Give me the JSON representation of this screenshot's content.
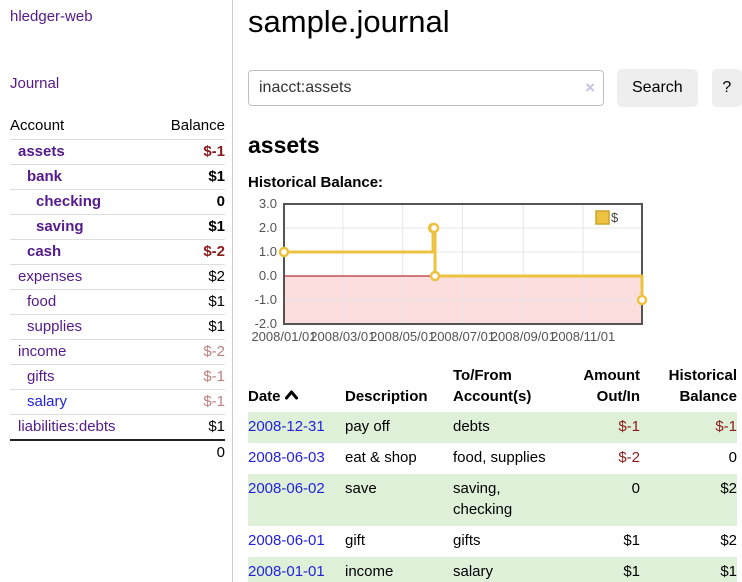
{
  "app": {
    "brand": "hledger-web"
  },
  "sidebar": {
    "journal_link": "Journal",
    "account_header": "Account",
    "balance_header": "Balance",
    "accounts": [
      {
        "label": "assets",
        "indent": 1,
        "bold": true,
        "visited": true,
        "balance": "$-1",
        "balance_color": "red"
      },
      {
        "label": "bank",
        "indent": 2,
        "bold": true,
        "visited": true,
        "balance": "$1",
        "balance_color": "black"
      },
      {
        "label": "checking",
        "indent": 3,
        "bold": true,
        "visited": true,
        "balance": "0",
        "balance_color": "black"
      },
      {
        "label": "saving",
        "indent": 3,
        "bold": true,
        "visited": true,
        "balance": "$1",
        "balance_color": "black"
      },
      {
        "label": "cash",
        "indent": 2,
        "bold": true,
        "visited": true,
        "balance": "$-2",
        "balance_color": "red"
      },
      {
        "label": "expenses",
        "indent": 1,
        "bold": false,
        "visited": true,
        "balance": "$2",
        "balance_color": "black"
      },
      {
        "label": "food",
        "indent": 2,
        "bold": false,
        "visited": true,
        "balance": "$1",
        "balance_color": "black"
      },
      {
        "label": "supplies",
        "indent": 2,
        "bold": false,
        "visited": true,
        "balance": "$1",
        "balance_color": "black"
      },
      {
        "label": "income",
        "indent": 1,
        "bold": false,
        "visited": true,
        "balance": "$-2",
        "balance_color": "pink"
      },
      {
        "label": "gifts",
        "indent": 2,
        "bold": false,
        "visited": true,
        "balance": "$-1",
        "balance_color": "pink"
      },
      {
        "label": "salary",
        "indent": 2,
        "bold": false,
        "visited": false,
        "balance": "$-1",
        "balance_color": "pink"
      },
      {
        "label": "liabilities:debts",
        "indent": 1,
        "bold": false,
        "visited": true,
        "balance": "$1",
        "balance_color": "black"
      }
    ],
    "total": "0"
  },
  "main": {
    "title": "sample.journal",
    "search": {
      "value": "inacct:assets",
      "clear_icon": "×",
      "button_label": "Search",
      "help_label": "?"
    },
    "account_heading": "assets",
    "chart_heading": "Historical Balance:"
  },
  "chart_data": {
    "type": "line",
    "title": "Historical Balance",
    "xlim_days": [
      0,
      365
    ],
    "ylim": [
      -2,
      3
    ],
    "y_ticks": [
      3.0,
      2.0,
      1.0,
      0.0,
      -1.0,
      -2.0
    ],
    "x_ticks": [
      {
        "day": 0,
        "label": "2008/01/01"
      },
      {
        "day": 60,
        "label": "2008/03/01"
      },
      {
        "day": 121,
        "label": "2008/05/01"
      },
      {
        "day": 182,
        "label": "2008/07/01"
      },
      {
        "day": 244,
        "label": "2008/09/01"
      },
      {
        "day": 305,
        "label": "2008/11/01"
      }
    ],
    "series": [
      {
        "name": "$",
        "color": "#EDC240",
        "step": true,
        "points": [
          {
            "date": "2008-01-01",
            "day": 0,
            "value": 1.0
          },
          {
            "date": "2008-06-01",
            "day": 152,
            "value": 2.0
          },
          {
            "date": "2008-06-02",
            "day": 153,
            "value": 2.0
          },
          {
            "date": "2008-06-03",
            "day": 154,
            "value": 0.0
          },
          {
            "date": "2008-12-31",
            "day": 365,
            "value": -1.0
          }
        ]
      }
    ],
    "legend": {
      "label": "$",
      "position": "top-right"
    },
    "grid": true,
    "negative_region_color": "#fcdede",
    "zero_line_color": "#aa0000",
    "border_color": "#545454",
    "grid_color": "#e6e6e6"
  },
  "register": {
    "headers": {
      "date": "Date",
      "description": "Description",
      "accounts": "To/From\nAccount(s)",
      "amount": "Amount\nOut/In",
      "balance": "Historical\nBalance"
    },
    "rows": [
      {
        "date": "2008-12-31",
        "description": "pay off",
        "accounts": "debts",
        "amount": "$-1",
        "amount_negative": true,
        "balance": "$-1",
        "balance_negative": true
      },
      {
        "date": "2008-06-03",
        "description": "eat & shop",
        "accounts": "food, supplies",
        "amount": "$-2",
        "amount_negative": true,
        "balance": "0",
        "balance_negative": false
      },
      {
        "date": "2008-06-02",
        "description": "save",
        "accounts": "saving,\nchecking",
        "amount": "0",
        "amount_negative": false,
        "balance": "$2",
        "balance_negative": false
      },
      {
        "date": "2008-06-01",
        "description": "gift",
        "accounts": "gifts",
        "amount": "$1",
        "amount_negative": false,
        "balance": "$2",
        "balance_negative": false
      },
      {
        "date": "2008-01-01",
        "description": "income",
        "accounts": "salary",
        "amount": "$1",
        "amount_negative": false,
        "balance": "$1",
        "balance_negative": false
      }
    ]
  }
}
